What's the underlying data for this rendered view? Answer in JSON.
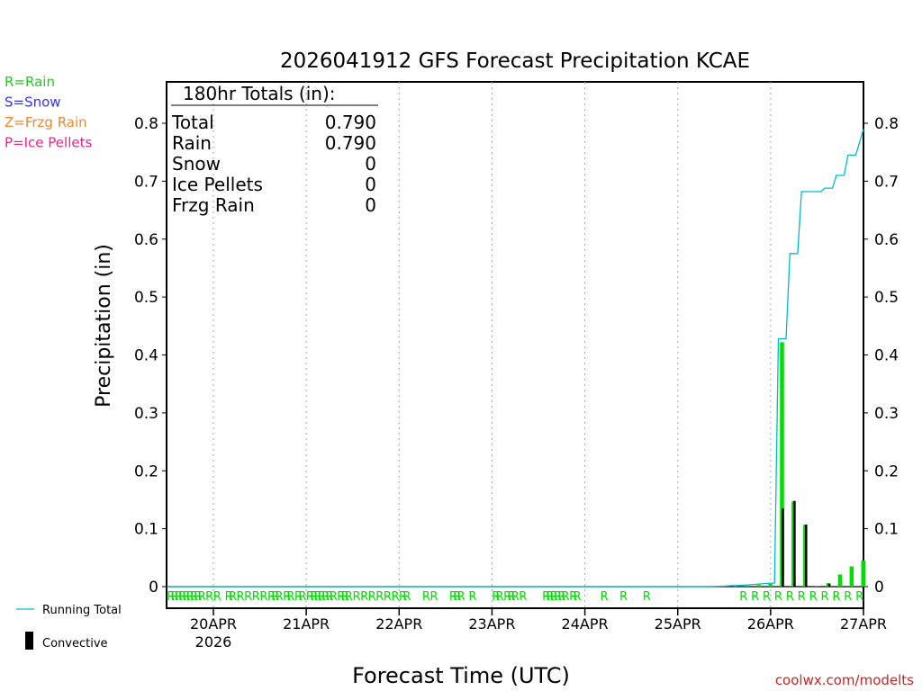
{
  "chart_data": {
    "type": "bar",
    "title": "2026041912 GFS Forecast Precipitation KCAE",
    "xlabel": "Forecast Time (UTC)",
    "ylabel": "Precipitation (in)",
    "ylim": [
      0,
      0.87
    ],
    "yticks": [
      0,
      0.1,
      0.2,
      0.3,
      0.4,
      0.5,
      0.6,
      0.7,
      0.8
    ],
    "ytick_labels": [
      "0",
      "0.1",
      "0.2",
      "0.3",
      "0.4",
      "0.5",
      "0.6",
      "0.7",
      "0.8"
    ],
    "x_unit": "forecast hours from 2026-04-19 12Z",
    "xlim": [
      0,
      180
    ],
    "xticks": [
      {
        "hour": 12,
        "label": "20APR",
        "sublabel": "2026"
      },
      {
        "hour": 36,
        "label": "21APR",
        "sublabel": ""
      },
      {
        "hour": 60,
        "label": "22APR",
        "sublabel": ""
      },
      {
        "hour": 84,
        "label": "23APR",
        "sublabel": ""
      },
      {
        "hour": 108,
        "label": "24APR",
        "sublabel": ""
      },
      {
        "hour": 132,
        "label": "25APR",
        "sublabel": ""
      },
      {
        "hour": 156,
        "label": "26APR",
        "sublabel": ""
      },
      {
        "hour": 180,
        "label": "27APR",
        "sublabel": ""
      }
    ],
    "precip_bars": [
      {
        "hour": 144,
        "value": 0.001
      },
      {
        "hour": 147,
        "value": 0.001
      },
      {
        "hour": 150,
        "value": 0.002
      },
      {
        "hour": 153,
        "value": 0.003
      },
      {
        "hour": 156,
        "value": 0.005
      },
      {
        "hour": 159,
        "value": 0.422
      },
      {
        "hour": 162,
        "value": 0.147
      },
      {
        "hour": 165,
        "value": 0.107
      },
      {
        "hour": 168,
        "value": 0.001
      },
      {
        "hour": 171,
        "value": 0.006
      },
      {
        "hour": 174,
        "value": 0.021
      },
      {
        "hour": 177,
        "value": 0.035
      },
      {
        "hour": 180,
        "value": 0.045
      }
    ],
    "convective_bars": [
      {
        "hour": 159,
        "value": 0.135
      },
      {
        "hour": 162,
        "value": 0.148
      },
      {
        "hour": 165,
        "value": 0.107
      },
      {
        "hour": 171,
        "value": 0.005
      }
    ],
    "running_total": {
      "name": "Running Total",
      "points": [
        [
          0,
          0
        ],
        [
          140,
          0
        ],
        [
          144,
          0.001
        ],
        [
          150,
          0.003
        ],
        [
          156,
          0.006
        ],
        [
          157,
          0.006
        ],
        [
          158,
          0.428
        ],
        [
          160,
          0.428
        ],
        [
          161,
          0.575
        ],
        [
          163,
          0.575
        ],
        [
          164,
          0.682
        ],
        [
          169,
          0.682
        ],
        [
          170,
          0.688
        ],
        [
          172,
          0.688
        ],
        [
          173,
          0.71
        ],
        [
          175,
          0.71
        ],
        [
          176,
          0.745
        ],
        [
          178,
          0.745
        ],
        [
          180,
          0.79
        ]
      ]
    },
    "ptype_markers": {
      "letter": "R",
      "hours": [
        1,
        2,
        3,
        4,
        5,
        6,
        7,
        8,
        9,
        11,
        13,
        16,
        17,
        19,
        21,
        23,
        25,
        27,
        28,
        29,
        31,
        32,
        34,
        35,
        37,
        38,
        39,
        40,
        41,
        42,
        43,
        45,
        46,
        47,
        49,
        51,
        53,
        55,
        57,
        59,
        61,
        62,
        67,
        69,
        74,
        75,
        76,
        79,
        85,
        86,
        88,
        89,
        90,
        92,
        98,
        99,
        100,
        101,
        102,
        103,
        105,
        106,
        113,
        118,
        124,
        149,
        152,
        155,
        158,
        161,
        164,
        167,
        170,
        173,
        176,
        179
      ]
    },
    "totals_box": {
      "title": "180hr Totals (in):",
      "rows": [
        {
          "label": "Total",
          "value": "0.790"
        },
        {
          "label": "Rain",
          "value": "0.790"
        },
        {
          "label": "Snow",
          "value": "0"
        },
        {
          "label": "Ice Pellets",
          "value": "0"
        },
        {
          "label": "Frzg Rain",
          "value": "0"
        }
      ]
    },
    "legend": [
      {
        "text": "R=Rain",
        "color": "#22cc22"
      },
      {
        "text": "S=Snow",
        "color": "#3333ee"
      },
      {
        "text": "Z=Frzg Rain",
        "color": "#ee8833"
      },
      {
        "text": "P=Ice Pellets",
        "color": "#ee2288"
      }
    ],
    "line_legend": {
      "running_total": "Running Total",
      "convective": "Convective"
    },
    "credit": "coolwx.com/modelts",
    "colors": {
      "rain": "#00dd00",
      "running_total": "#00bbcc",
      "convective": "#000000",
      "grid": "#aaaaaa",
      "credit": "#cc2222"
    }
  }
}
